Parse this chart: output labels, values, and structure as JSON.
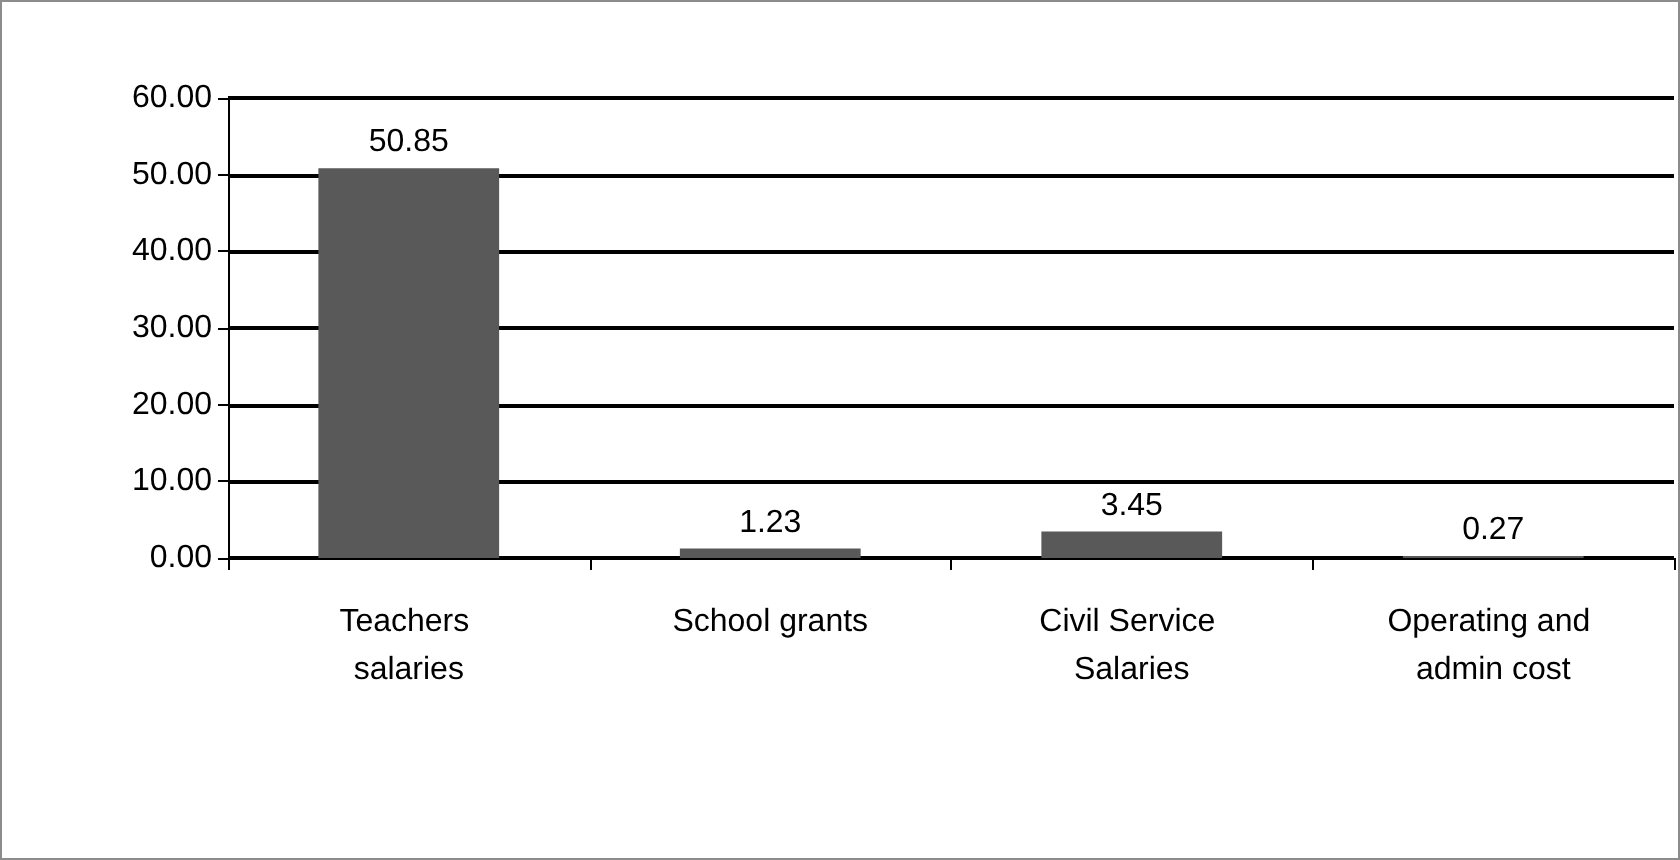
{
  "chart_data": {
    "type": "bar",
    "categories": [
      "Teachers salaries",
      "School grants",
      "Civil Service Salaries",
      "Operating and admin cost"
    ],
    "values": [
      50.85,
      1.23,
      3.45,
      0.27
    ],
    "color": "#595959",
    "ylim": [
      0,
      60
    ],
    "yticks": [
      {
        "value": 0,
        "label": "0.00"
      },
      {
        "value": 10,
        "label": "10.00"
      },
      {
        "value": 20,
        "label": "20.00"
      },
      {
        "value": 30,
        "label": "30.00"
      },
      {
        "value": 40,
        "label": "40.00"
      },
      {
        "value": 50,
        "label": "50.00"
      },
      {
        "value": 60,
        "label": "60.00"
      }
    ],
    "grid": "y",
    "data_labels": true
  }
}
